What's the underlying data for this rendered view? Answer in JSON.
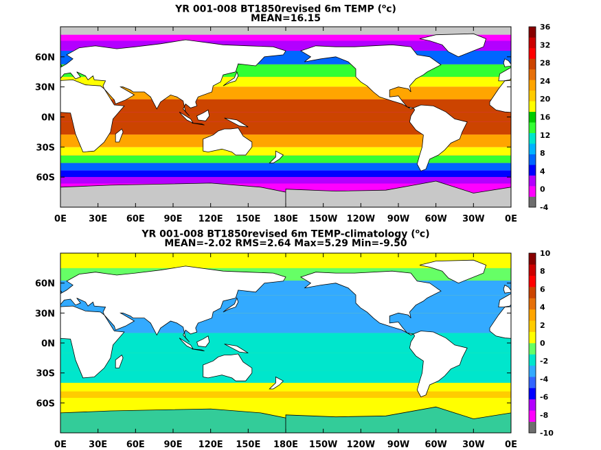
{
  "chart_data": [
    {
      "type": "heatmap",
      "title": "YR 001-008 BT1850revised 6m TEMP (",
      "title_sup": "o",
      "title_end": "c)",
      "subtitle": "MEAN=16.15",
      "x_ticks": [
        "0E",
        "30E",
        "60E",
        "90E",
        "120E",
        "150E",
        "180E",
        "150W",
        "120W",
        "90W",
        "60W",
        "30W",
        "0E"
      ],
      "y_ticks": [
        "60N",
        "30N",
        "0N",
        "30S",
        "60S"
      ],
      "colorbar": {
        "min": -4,
        "max": 36,
        "step": 4,
        "labels": [
          "36",
          "32",
          "28",
          "24",
          "20",
          "16",
          "12",
          "8",
          "4",
          "0",
          "-4"
        ],
        "colors": [
          "#6e6e6e",
          "#ff00ff",
          "#b300ff",
          "#0000ff",
          "#0066ff",
          "#00b3ff",
          "#00e6cc",
          "#33ff33",
          "#00cc00",
          "#ffff00",
          "#ffcc00",
          "#ffa500",
          "#e6700a",
          "#cc4400",
          "#ff0000",
          "#cc0000",
          "#880000"
        ]
      },
      "bands": [
        {
          "lat": 80,
          "value": -4
        },
        {
          "lat": 72,
          "value": 0
        },
        {
          "lat": 60,
          "value": 6
        },
        {
          "lat": 45,
          "value": 12
        },
        {
          "lat": 35,
          "value": 18
        },
        {
          "lat": 25,
          "value": 24
        },
        {
          "lat": 10,
          "value": 28
        },
        {
          "lat": 0,
          "value": 29
        },
        {
          "lat": -10,
          "value": 28
        },
        {
          "lat": -25,
          "value": 24
        },
        {
          "lat": -35,
          "value": 18
        },
        {
          "lat": -42,
          "value": 14
        },
        {
          "lat": -50,
          "value": 6
        },
        {
          "lat": -57,
          "value": 2
        },
        {
          "lat": -63,
          "value": 0
        },
        {
          "lat": -70,
          "value": -4
        }
      ]
    },
    {
      "type": "heatmap",
      "title": "YR 001-008 BT1850revised 6m TEMP-climatology (",
      "title_sup": "o",
      "title_end": "c)",
      "subtitle": "MEAN=-2.02   RMS=2.64   Max=5.29   Min=-9.50",
      "x_ticks": [
        "0E",
        "30E",
        "60E",
        "90E",
        "120E",
        "150E",
        "180E",
        "150W",
        "120W",
        "90W",
        "60W",
        "30W",
        "0E"
      ],
      "y_ticks": [
        "60N",
        "30N",
        "0N",
        "30S",
        "60S"
      ],
      "colorbar": {
        "min": -10,
        "max": 10,
        "step": 2,
        "labels": [
          "10",
          "8",
          "6",
          "4",
          "2",
          "0",
          "-2",
          "-4",
          "-6",
          "-8",
          "-10"
        ],
        "colors": [
          "#6e6e6e",
          "#ff00ff",
          "#b300ff",
          "#0000ff",
          "#3366ff",
          "#33aaff",
          "#00e6cc",
          "#66ff66",
          "#ffff00",
          "#ffcc00",
          "#ffa500",
          "#e6700a",
          "#cc4400",
          "#ff0000",
          "#cc0000",
          "#880000"
        ]
      },
      "bands": [
        {
          "lat": 80,
          "value": 0
        },
        {
          "lat": 70,
          "value": -1
        },
        {
          "lat": 55,
          "value": -3
        },
        {
          "lat": 40,
          "value": -4
        },
        {
          "lat": 20,
          "value": -3
        },
        {
          "lat": 0,
          "value": -2.5
        },
        {
          "lat": -20,
          "value": -2.5
        },
        {
          "lat": -35,
          "value": -2
        },
        {
          "lat": -45,
          "value": 0
        },
        {
          "lat": -52,
          "value": 2
        },
        {
          "lat": -58,
          "value": 1
        },
        {
          "lat": -65,
          "value": 0
        },
        {
          "lat": -70,
          "value": 0
        }
      ]
    }
  ]
}
